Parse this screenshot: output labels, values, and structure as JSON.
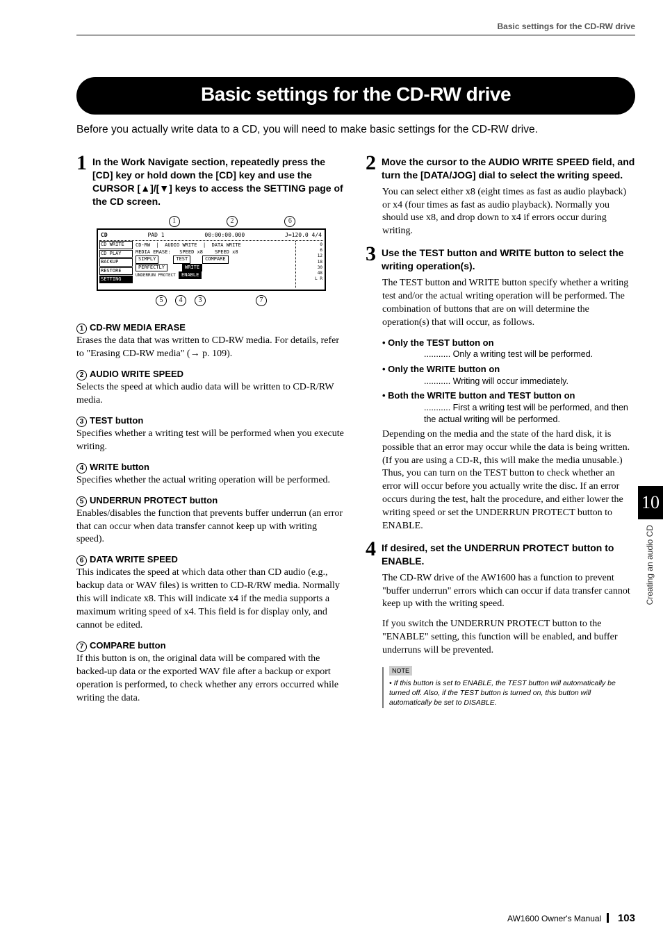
{
  "header_label": "Basic settings for the CD-RW drive",
  "banner_title": "Basic settings for the CD-RW drive",
  "intro": "Before you actually write data to a CD, you will need to make basic settings for the CD-RW drive.",
  "chapter": {
    "num": "10",
    "title": "Creating an audio CD"
  },
  "footer": {
    "manual": "AW1600  Owner's Manual",
    "page": "103"
  },
  "left": {
    "step1": {
      "num": "1",
      "text": "In the Work Navigate section, repeatedly press the [CD] key or hold down the [CD] key and use the CURSOR [▲]/[▼] keys to access the SETTING page of the CD screen."
    },
    "callout_top": [
      "1",
      "2",
      "6"
    ],
    "callout_bot": [
      "5",
      "4",
      "3",
      "7"
    ],
    "screenshot": {
      "title": "CD",
      "pad": "PAD    1",
      "counter": "00:00:00.000",
      "tempo": "J=120.0 4/4",
      "nav": [
        "CD WRITE",
        "CD PLAY",
        "BACKUP",
        "RESTORE",
        "SETTING"
      ],
      "nav_sel_index": 4,
      "cdrw_label": "CD-RW",
      "mediaerase_label": "MEDIA ERASE:",
      "mediaerase_btns": [
        "SIMPLY",
        "PERFECTLY"
      ],
      "audio_write": "AUDIO WRITE",
      "audio_speed": "SPEED   x8",
      "test_btn": "TEST",
      "write_btn": "WRITE",
      "underrun_label": "UNDERRUN PROTECT",
      "underrun_btn": "ENABLE",
      "data_write": "DATA WRITE",
      "data_speed": "SPEED   x8",
      "compare_btn": "COMPARE",
      "meter_vals": [
        "0",
        "6",
        "12",
        "18",
        "30",
        "48"
      ],
      "meter_lr": "L  R"
    },
    "items": [
      {
        "circ": "1",
        "head": "CD-RW MEDIA ERASE",
        "body": "Erases the data that was written to CD-RW media. For details, refer to \"Erasing CD-RW media\" (→ p. 109)."
      },
      {
        "circ": "2",
        "head": "AUDIO WRITE SPEED",
        "body": "Selects the speed at which audio data will be written to CD-R/RW media."
      },
      {
        "circ": "3",
        "head": "TEST button",
        "body": "Specifies whether a writing test will be performed when you execute writing."
      },
      {
        "circ": "4",
        "head": "WRITE button",
        "body": "Specifies whether the actual writing operation will be performed."
      },
      {
        "circ": "5",
        "head": "UNDERRUN PROTECT button",
        "body": "Enables/disables the function that prevents buffer underrun (an error that can occur when data transfer cannot keep up with writing speed)."
      },
      {
        "circ": "6",
        "head": "DATA WRITE SPEED",
        "body": "This indicates the speed at which data other than CD audio (e.g., backup data or WAV files) is written to CD-R/RW media. Normally this will indicate x8. This will indicate x4 if the media supports a maximum writing speed of x4. This field is for display only, and cannot be edited."
      },
      {
        "circ": "7",
        "head": "COMPARE button",
        "body": "If this button is on, the original data will be compared with the backed-up data or the exported WAV file after a backup or export operation is performed, to check whether any errors occurred while writing the data."
      }
    ]
  },
  "right": {
    "step2": {
      "num": "2",
      "text": "Move the cursor to the AUDIO WRITE SPEED field, and turn the [DATA/JOG] dial to select the writing speed.",
      "body": "You can select either x8 (eight times as fast as audio playback) or x4 (four times as fast as audio playback). Normally you should use x8, and drop down to x4 if errors occur during writing."
    },
    "step3": {
      "num": "3",
      "text": "Use the TEST button and WRITE button to select the writing operation(s).",
      "body1": "The TEST button and WRITE button specify whether a writing test and/or the actual writing operation will be performed. The combination of buttons that are on will determine the operation(s) that will occur, as follows.",
      "bullets": [
        {
          "h": "Only the TEST button on",
          "d": "........... Only a writing test will be performed."
        },
        {
          "h": "Only the WRITE button on",
          "d": "........... Writing will occur immediately."
        },
        {
          "h": "Both the WRITE button and TEST button on",
          "d": "........... First a writing test will be performed, and then the actual writing will be performed."
        }
      ],
      "body2": "Depending on the media and the state of the hard disk, it is possible that an error may occur while the data is being written. (If you are using a CD-R, this will make the media unusable.) Thus, you can turn on the TEST button to check whether an error will occur before you actually write the disc. If an error occurs during the test, halt the procedure, and either lower the writing speed or set the UNDERRUN PROTECT button to ENABLE."
    },
    "step4": {
      "num": "4",
      "text": "If desired, set the UNDERRUN PROTECT button to ENABLE.",
      "body1": "The CD-RW drive of the AW1600 has a function to prevent \"buffer underrun\" errors which can occur if data transfer cannot keep up with the writing speed.",
      "body2": "If you switch the UNDERRUN PROTECT button to the \"ENABLE\" setting, this function will be enabled, and buffer underruns will be prevented."
    },
    "note": {
      "label": "NOTE",
      "text": "• If this button is set to ENABLE, the TEST button will automatically be turned off. Also, if the TEST button is turned on, this button will automatically be set to DISABLE."
    }
  }
}
